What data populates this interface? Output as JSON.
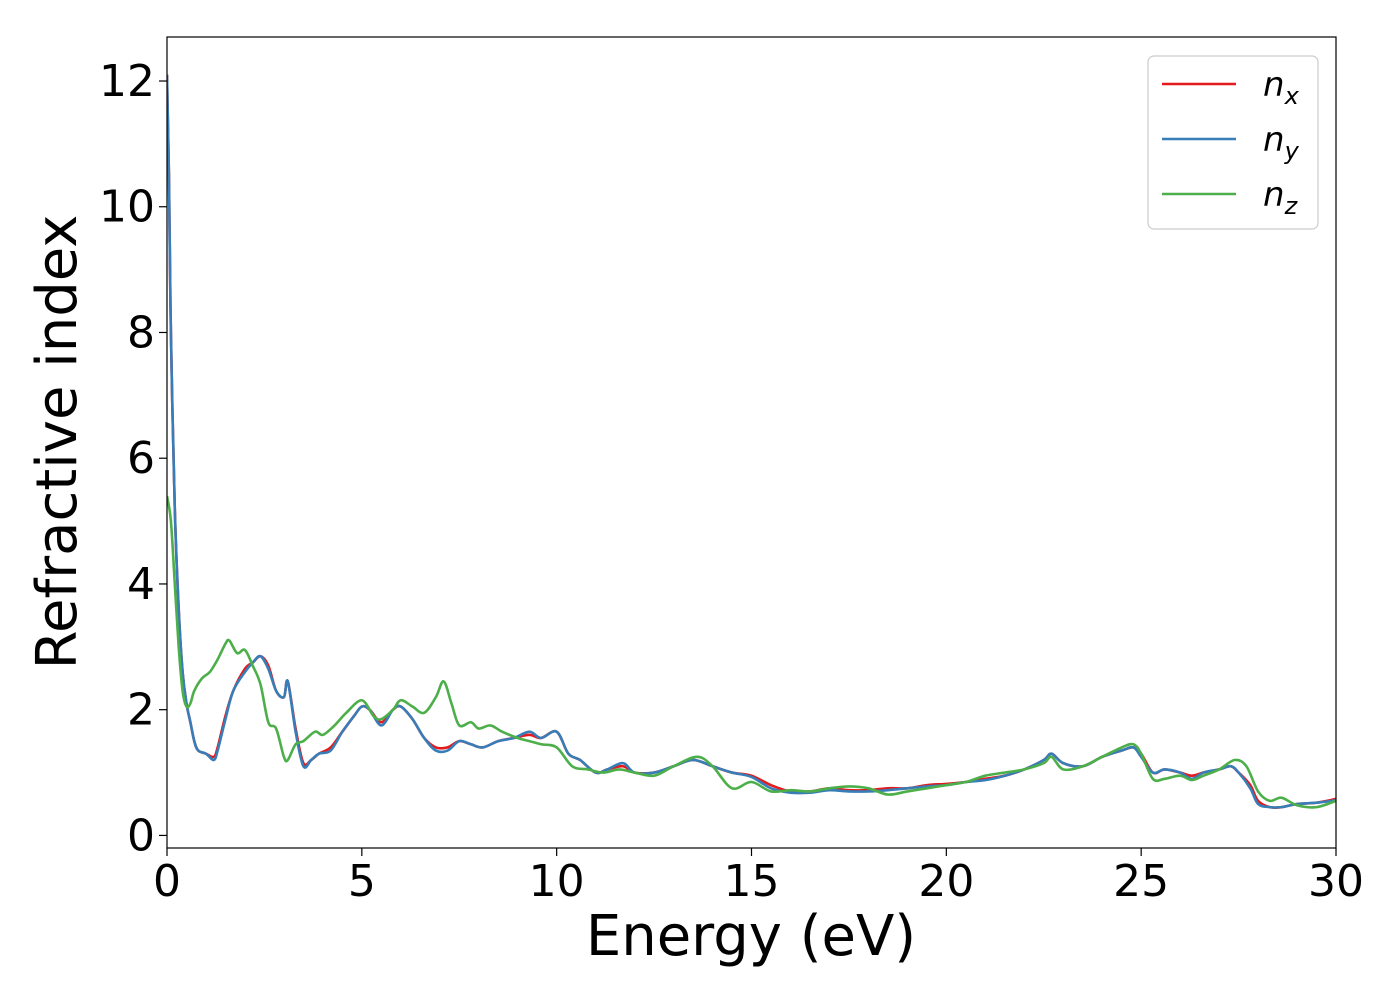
{
  "chart_data": {
    "type": "line",
    "title": "",
    "xlabel": "Energy (eV)",
    "ylabel": "Refractive index",
    "xlim": [
      0,
      30
    ],
    "ylim": [
      -0.2,
      12.7
    ],
    "xticks": [
      0,
      5,
      10,
      15,
      20,
      25,
      30
    ],
    "yticks": [
      0,
      2,
      4,
      6,
      8,
      10,
      12
    ],
    "grid": false,
    "legend_position": "top-right",
    "series": [
      {
        "name": "x",
        "symbol": "n",
        "color": "#e41a1c",
        "x": [
          0,
          0.05,
          0.1,
          0.2,
          0.3,
          0.4,
          0.5,
          0.6,
          0.7,
          0.8,
          1.0,
          1.2,
          1.3,
          1.5,
          1.7,
          2.0,
          2.2,
          2.4,
          2.6,
          2.8,
          3.0,
          3.1,
          3.3,
          3.5,
          3.7,
          3.9,
          4.2,
          4.5,
          4.8,
          5.0,
          5.2,
          5.5,
          5.8,
          6.0,
          6.3,
          6.6,
          6.9,
          7.2,
          7.5,
          7.8,
          8.1,
          8.5,
          8.9,
          9.3,
          9.6,
          10.0,
          10.3,
          10.6,
          11.0,
          11.3,
          11.7,
          12.0,
          12.5,
          13.0,
          13.5,
          14.0,
          14.5,
          15.0,
          15.5,
          16.0,
          16.5,
          17.0,
          17.5,
          18.0,
          18.5,
          19.0,
          19.5,
          20.0,
          20.5,
          21.0,
          21.5,
          22.0,
          22.5,
          22.7,
          23.0,
          23.5,
          24.0,
          24.5,
          24.8,
          25.0,
          25.3,
          25.6,
          26.0,
          26.3,
          26.6,
          27.0,
          27.3,
          27.5,
          27.8,
          28.0,
          28.3,
          28.6,
          29.0,
          29.5,
          30.0
        ],
        "y": [
          12.1,
          10.5,
          8.0,
          5.2,
          3.6,
          2.6,
          2.1,
          1.8,
          1.5,
          1.35,
          1.3,
          1.25,
          1.4,
          1.9,
          2.3,
          2.65,
          2.75,
          2.85,
          2.7,
          2.3,
          2.2,
          2.45,
          1.7,
          1.15,
          1.2,
          1.3,
          1.4,
          1.65,
          1.9,
          2.05,
          2.0,
          1.8,
          2.0,
          2.05,
          1.85,
          1.55,
          1.4,
          1.4,
          1.5,
          1.45,
          1.4,
          1.5,
          1.55,
          1.6,
          1.55,
          1.65,
          1.3,
          1.2,
          1.0,
          1.05,
          1.1,
          1.0,
          1.0,
          1.1,
          1.2,
          1.1,
          1.0,
          0.95,
          0.8,
          0.7,
          0.7,
          0.75,
          0.72,
          0.72,
          0.75,
          0.75,
          0.8,
          0.82,
          0.85,
          0.9,
          0.95,
          1.05,
          1.2,
          1.3,
          1.15,
          1.1,
          1.25,
          1.35,
          1.4,
          1.3,
          1.0,
          1.05,
          1.0,
          0.95,
          1.0,
          1.05,
          1.1,
          1.0,
          0.8,
          0.55,
          0.45,
          0.45,
          0.5,
          0.52,
          0.58
        ]
      },
      {
        "name": "y",
        "symbol": "n",
        "color": "#377eb8",
        "x": [
          0,
          0.05,
          0.1,
          0.2,
          0.3,
          0.4,
          0.5,
          0.6,
          0.7,
          0.8,
          1.0,
          1.2,
          1.3,
          1.5,
          1.7,
          2.0,
          2.2,
          2.4,
          2.6,
          2.8,
          3.0,
          3.1,
          3.3,
          3.5,
          3.7,
          3.9,
          4.2,
          4.5,
          4.8,
          5.0,
          5.2,
          5.5,
          5.8,
          6.0,
          6.3,
          6.6,
          6.9,
          7.2,
          7.5,
          7.8,
          8.1,
          8.5,
          8.9,
          9.3,
          9.6,
          10.0,
          10.3,
          10.6,
          11.0,
          11.3,
          11.7,
          12.0,
          12.5,
          13.0,
          13.5,
          14.0,
          14.5,
          15.0,
          15.5,
          16.0,
          16.5,
          17.0,
          17.5,
          18.0,
          18.5,
          19.0,
          19.5,
          20.0,
          20.5,
          21.0,
          21.5,
          22.0,
          22.5,
          22.7,
          23.0,
          23.5,
          24.0,
          24.5,
          24.8,
          25.0,
          25.3,
          25.6,
          26.0,
          26.3,
          26.6,
          27.0,
          27.3,
          27.5,
          27.8,
          28.0,
          28.3,
          28.6,
          29.0,
          29.5,
          30.0
        ],
        "y": [
          12.1,
          10.5,
          8.0,
          5.2,
          3.6,
          2.6,
          2.1,
          1.8,
          1.5,
          1.35,
          1.3,
          1.2,
          1.35,
          1.85,
          2.3,
          2.6,
          2.75,
          2.85,
          2.65,
          2.3,
          2.2,
          2.45,
          1.65,
          1.1,
          1.2,
          1.3,
          1.35,
          1.65,
          1.9,
          2.05,
          2.0,
          1.75,
          2.0,
          2.05,
          1.85,
          1.55,
          1.35,
          1.35,
          1.5,
          1.45,
          1.4,
          1.5,
          1.55,
          1.65,
          1.55,
          1.65,
          1.3,
          1.2,
          1.0,
          1.05,
          1.15,
          1.0,
          1.0,
          1.1,
          1.2,
          1.1,
          1.0,
          0.93,
          0.75,
          0.68,
          0.68,
          0.72,
          0.7,
          0.7,
          0.72,
          0.75,
          0.78,
          0.8,
          0.85,
          0.88,
          0.95,
          1.05,
          1.2,
          1.3,
          1.15,
          1.1,
          1.25,
          1.35,
          1.4,
          1.25,
          1.0,
          1.05,
          1.0,
          0.9,
          1.0,
          1.05,
          1.1,
          1.0,
          0.75,
          0.5,
          0.45,
          0.45,
          0.5,
          0.52,
          0.56
        ]
      },
      {
        "name": "z",
        "symbol": "n",
        "color": "#4daf4a",
        "x": [
          0,
          0.1,
          0.2,
          0.3,
          0.4,
          0.5,
          0.6,
          0.7,
          0.9,
          1.1,
          1.3,
          1.5,
          1.6,
          1.8,
          2.0,
          2.2,
          2.4,
          2.6,
          2.8,
          3.0,
          3.1,
          3.3,
          3.5,
          3.8,
          4.0,
          4.3,
          4.6,
          5.0,
          5.3,
          5.5,
          5.8,
          6.0,
          6.3,
          6.6,
          6.9,
          7.1,
          7.3,
          7.5,
          7.8,
          8.0,
          8.3,
          8.6,
          9.0,
          9.3,
          9.6,
          10.0,
          10.4,
          10.8,
          11.2,
          11.6,
          12.0,
          12.5,
          13.0,
          13.6,
          14.0,
          14.5,
          15.0,
          15.5,
          16.0,
          16.5,
          17.0,
          17.5,
          18.0,
          18.5,
          19.0,
          19.5,
          20.0,
          20.5,
          21.0,
          21.5,
          22.0,
          22.5,
          22.7,
          23.0,
          23.5,
          24.0,
          24.5,
          24.8,
          25.0,
          25.3,
          25.6,
          26.0,
          26.3,
          26.6,
          27.0,
          27.4,
          27.7,
          28.0,
          28.3,
          28.6,
          29.0,
          29.5,
          30.0
        ],
        "y": [
          5.4,
          5.0,
          4.0,
          3.0,
          2.3,
          2.05,
          2.1,
          2.3,
          2.5,
          2.6,
          2.8,
          3.05,
          3.1,
          2.9,
          2.95,
          2.7,
          2.4,
          1.8,
          1.7,
          1.25,
          1.2,
          1.45,
          1.5,
          1.65,
          1.6,
          1.75,
          1.95,
          2.15,
          1.9,
          1.85,
          2.0,
          2.15,
          2.05,
          1.95,
          2.2,
          2.45,
          2.1,
          1.75,
          1.8,
          1.7,
          1.75,
          1.65,
          1.55,
          1.5,
          1.45,
          1.4,
          1.1,
          1.05,
          1.0,
          1.05,
          1.0,
          0.95,
          1.1,
          1.25,
          1.1,
          0.75,
          0.85,
          0.7,
          0.72,
          0.7,
          0.75,
          0.78,
          0.75,
          0.65,
          0.7,
          0.75,
          0.8,
          0.85,
          0.95,
          1.0,
          1.05,
          1.15,
          1.25,
          1.05,
          1.1,
          1.25,
          1.4,
          1.45,
          1.3,
          0.9,
          0.9,
          0.95,
          0.88,
          0.95,
          1.05,
          1.2,
          1.1,
          0.7,
          0.55,
          0.6,
          0.48,
          0.45,
          0.55
        ]
      }
    ]
  }
}
